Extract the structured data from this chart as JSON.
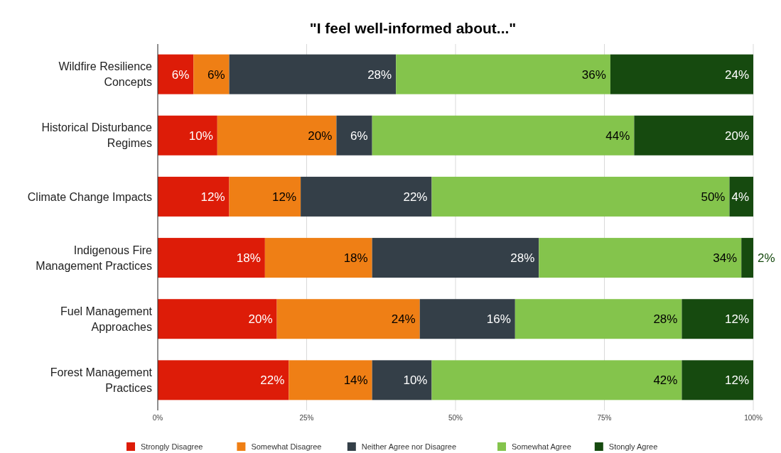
{
  "chart_data": {
    "type": "bar",
    "orientation": "horizontal",
    "stacked": true,
    "title": "\"I feel well-informed about...\"",
    "categories": [
      "Wildfire Resilience Concepts",
      "Historical Disturbance Regimes",
      "Climate Change Impacts",
      "Indigenous Fire Management Practices",
      "Fuel Management Approaches",
      "Forest Management Practices"
    ],
    "series": [
      {
        "name": "Strongly Disagree",
        "color": "#dd1c08",
        "values": [
          6,
          10,
          12,
          18,
          20,
          22
        ],
        "value_labels": [
          "6%",
          "10%",
          "12%",
          "18%",
          "20%",
          "22%"
        ]
      },
      {
        "name": "Somewhat Disagree",
        "color": "#ef7f15",
        "values": [
          6,
          20,
          12,
          18,
          24,
          14
        ],
        "value_labels": [
          "6%",
          "20%",
          "12%",
          "18%",
          "24%",
          "14%"
        ]
      },
      {
        "name": "Neither Agree nor Disagree",
        "color": "#343f48",
        "values": [
          28,
          6,
          22,
          28,
          16,
          10
        ],
        "value_labels": [
          "28%",
          "6%",
          "22%",
          "28%",
          "16%",
          "10%"
        ]
      },
      {
        "name": "Somewhat Agree",
        "color": "#84c44c",
        "values": [
          36,
          44,
          50,
          34,
          28,
          42
        ],
        "value_labels": [
          "36%",
          "44%",
          "50%",
          "34%",
          "28%",
          "42%"
        ]
      },
      {
        "name": "Stongly Agree",
        "color": "#164a0f",
        "values": [
          24,
          20,
          4,
          2,
          12,
          12
        ],
        "value_labels": [
          "24%",
          "20%",
          "4%",
          "2%",
          "12%",
          "12%"
        ]
      }
    ],
    "xlim": [
      0,
      100
    ],
    "xticks": [
      {
        "value": 0,
        "label": "0%"
      },
      {
        "value": 25,
        "label": "25%"
      },
      {
        "value": 50,
        "label": "50%"
      },
      {
        "value": 75,
        "label": "75%"
      },
      {
        "value": 100,
        "label": "100%"
      }
    ],
    "grid": "x",
    "legend": "bottom"
  }
}
